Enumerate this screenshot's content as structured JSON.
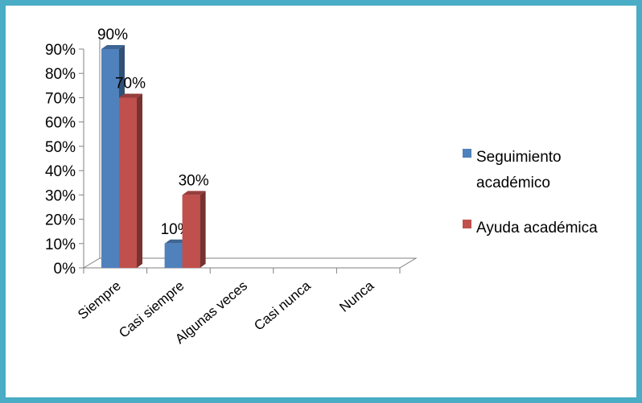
{
  "chart_data": {
    "type": "bar",
    "title": "",
    "xlabel": "",
    "ylabel": "",
    "categories": [
      "Siempre",
      "Casi siempre",
      "Algunas veces",
      "Casi nunca",
      "Nunca"
    ],
    "series": [
      {
        "name": "Seguimiento académico",
        "legend_lines": [
          "Seguimiento",
          "académico"
        ],
        "values": [
          90,
          10,
          null,
          null,
          null
        ],
        "labels": [
          "90%",
          "10%",
          "",
          "",
          ""
        ],
        "color": "#4f81bd"
      },
      {
        "name": "Ayuda académica",
        "legend_lines": [
          "Ayuda académica"
        ],
        "values": [
          70,
          30,
          null,
          null,
          null
        ],
        "labels": [
          "70%",
          "30%",
          "",
          "",
          ""
        ],
        "color": "#c0504d"
      }
    ],
    "ylim": [
      0,
      90
    ],
    "yticks": [
      "0%",
      "10%",
      "20%",
      "30%",
      "40%",
      "50%",
      "60%",
      "70%",
      "80%",
      "90%"
    ],
    "legend_position": "right",
    "grid": false,
    "style": "3d-clustered-column"
  },
  "frame_color": "#4aacc5"
}
